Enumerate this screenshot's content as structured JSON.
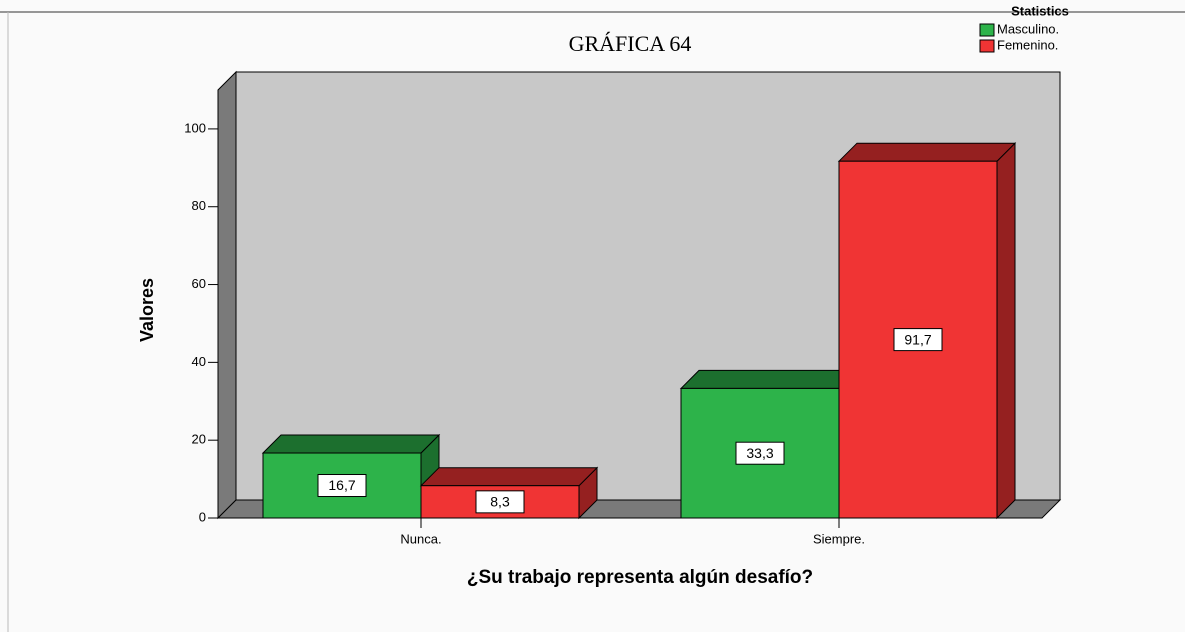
{
  "chart_data": {
    "type": "bar3d",
    "title": "GRÁFICA 64",
    "legend_title": "Statistics",
    "x_label": "¿Su trabajo representa algún desafío?",
    "y_label": "Valores",
    "categories": [
      "Nunca.",
      "Siempre."
    ],
    "series": [
      {
        "name": "Masculino.",
        "color": "#2db34a",
        "values": [
          16.7,
          33.3
        ],
        "value_labels": [
          "16,7",
          "33,3"
        ]
      },
      {
        "name": "Femenino.",
        "color": "#f03434",
        "values": [
          8.3,
          91.7
        ],
        "value_labels": [
          "8,3",
          "91,7"
        ]
      }
    ],
    "ylim": [
      0,
      110
    ],
    "yticks": [
      0,
      20,
      40,
      60,
      80,
      100
    ],
    "legend": "top-right"
  }
}
